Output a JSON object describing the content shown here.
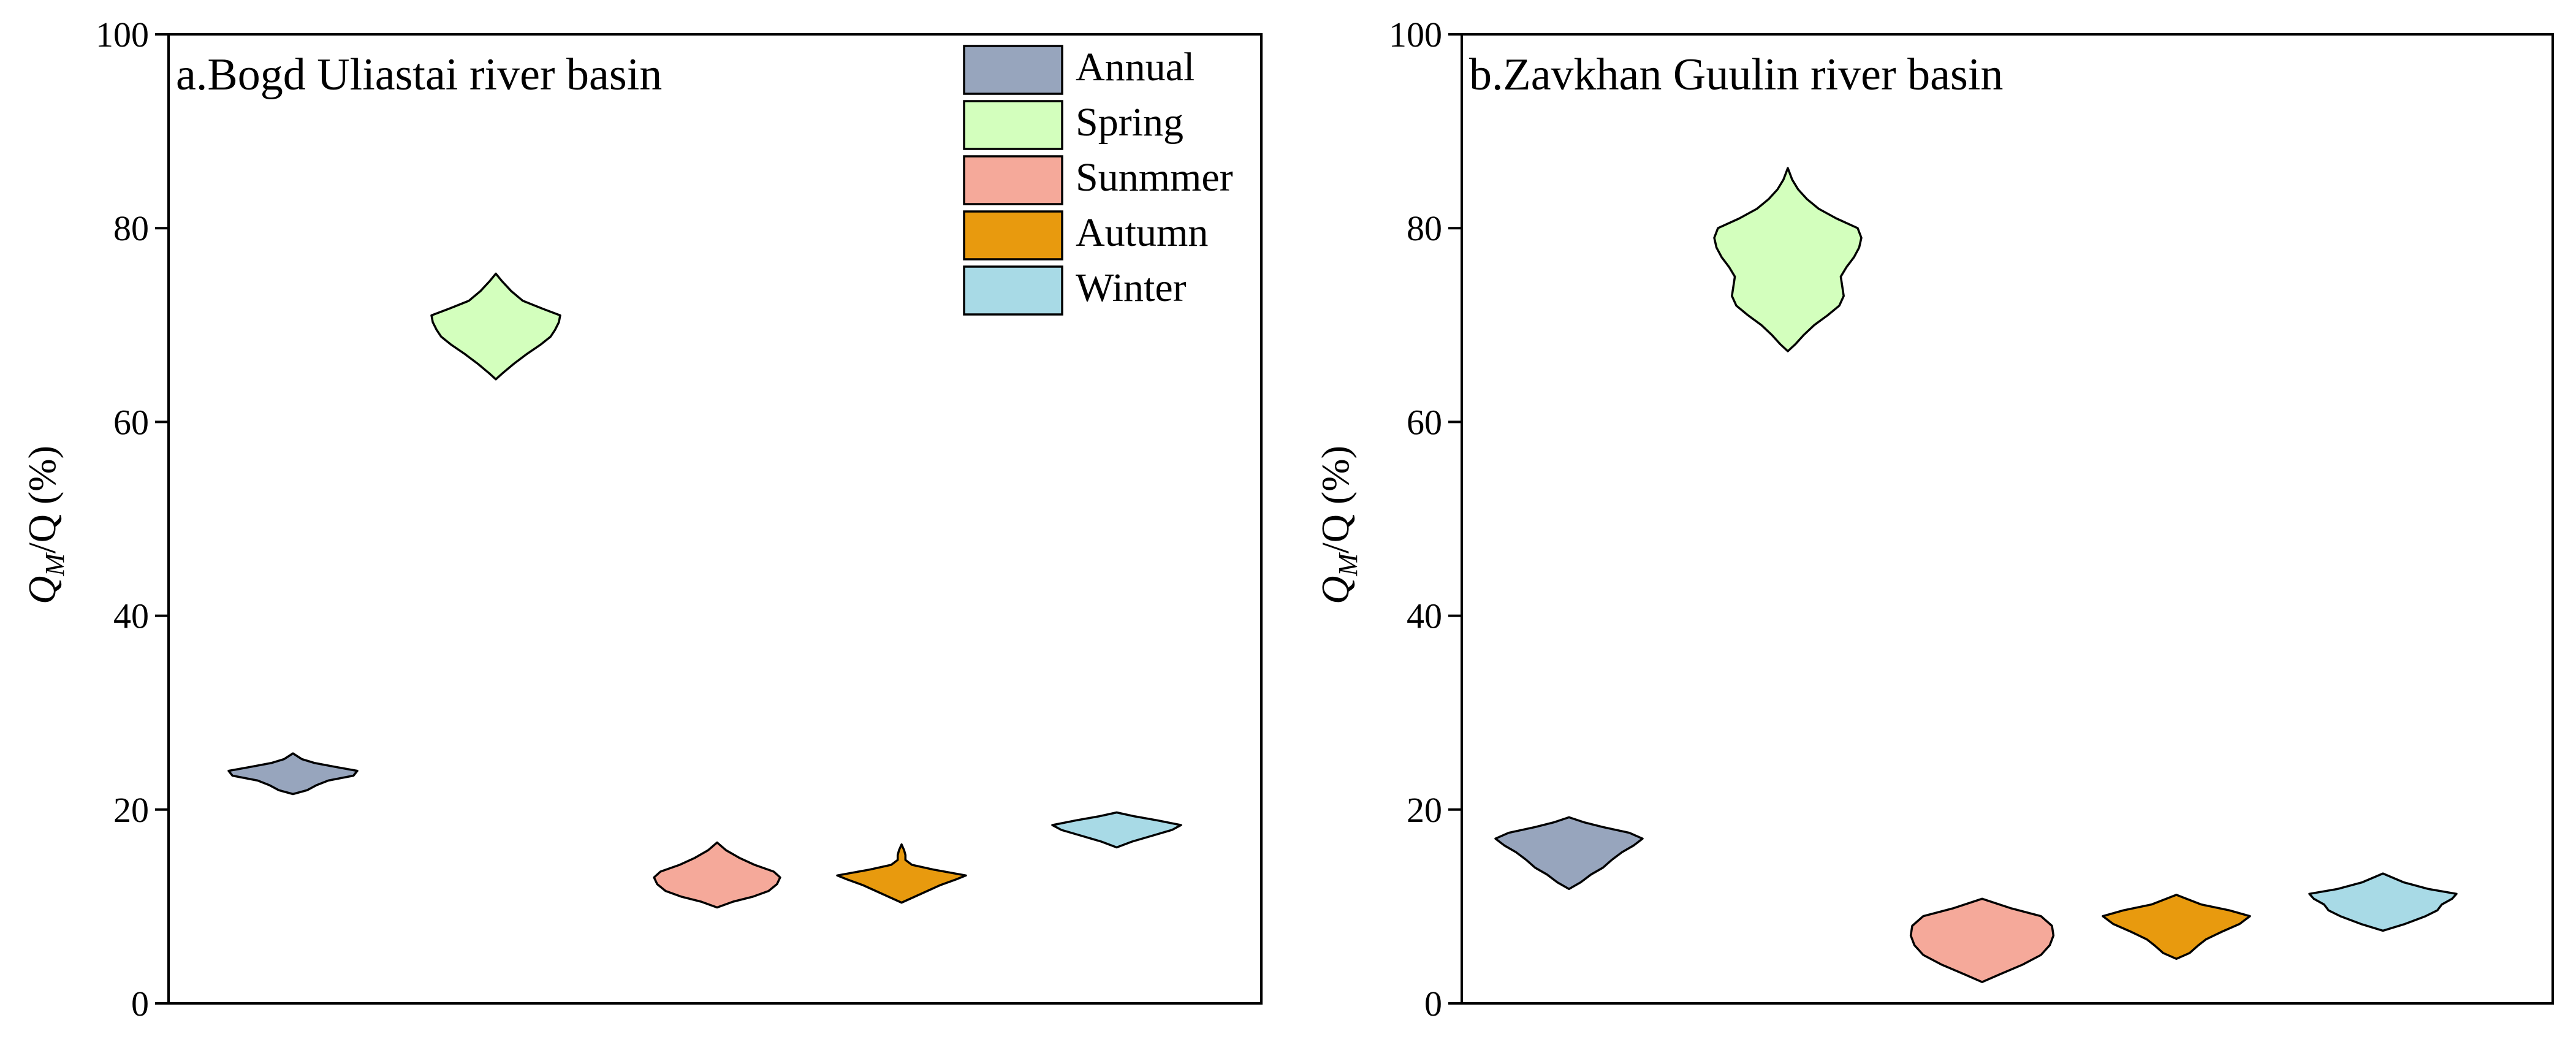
{
  "chart_data": [
    {
      "type": "violin",
      "title": "a.Bogd Uliastai river basin",
      "ylabel": {
        "q": "Q",
        "sub": "M",
        "rest": "/Q (%)"
      },
      "ylim": [
        0,
        100
      ],
      "yticks": [
        0,
        20,
        40,
        60,
        80,
        100
      ],
      "legend": {
        "position": "top-right",
        "entries": [
          "Annual",
          "Spring",
          "Sunmmer",
          "Autumn",
          "Winter"
        ]
      },
      "series": [
        {
          "name": "Annual",
          "color": "#97a5bd",
          "profile": [
            [
              21.6,
              0
            ],
            [
              22,
              0.22
            ],
            [
              22.5,
              0.36
            ],
            [
              23,
              0.55
            ],
            [
              23.5,
              0.94
            ],
            [
              24,
              1
            ],
            [
              24.4,
              0.66
            ],
            [
              24.8,
              0.34
            ],
            [
              25.2,
              0.14
            ],
            [
              25.8,
              0
            ]
          ]
        },
        {
          "name": "Spring",
          "color": "#d3ffbd",
          "profile": [
            [
              64.4,
              0
            ],
            [
              65,
              0.1
            ],
            [
              66,
              0.28
            ],
            [
              67,
              0.48
            ],
            [
              68,
              0.7
            ],
            [
              68.8,
              0.85
            ],
            [
              69.5,
              0.92
            ],
            [
              70.3,
              0.98
            ],
            [
              71,
              1
            ],
            [
              71.7,
              0.72
            ],
            [
              72.5,
              0.42
            ],
            [
              73.5,
              0.24
            ],
            [
              74.5,
              0.1
            ],
            [
              75.3,
              0
            ]
          ]
        },
        {
          "name": "Sunmmer",
          "color": "#f5a99a",
          "profile": [
            [
              9.9,
              0
            ],
            [
              10.5,
              0.25
            ],
            [
              11,
              0.55
            ],
            [
              11.6,
              0.8
            ],
            [
              12.3,
              0.93
            ],
            [
              13,
              0.98
            ],
            [
              13.6,
              0.88
            ],
            [
              14.3,
              0.58
            ],
            [
              15,
              0.35
            ],
            [
              15.8,
              0.14
            ],
            [
              16.6,
              0
            ]
          ]
        },
        {
          "name": "Autumn",
          "color": "#e89a0e",
          "profile": [
            [
              10.4,
              0
            ],
            [
              11,
              0.2
            ],
            [
              11.6,
              0.4
            ],
            [
              12.2,
              0.6
            ],
            [
              12.8,
              0.85
            ],
            [
              13.2,
              1
            ],
            [
              13.8,
              0.5
            ],
            [
              14.3,
              0.16
            ],
            [
              14.8,
              0.06
            ],
            [
              15.3,
              0.06
            ],
            [
              15.8,
              0.04
            ],
            [
              16.4,
              0
            ]
          ]
        },
        {
          "name": "Winter",
          "color": "#a8dae6",
          "profile": [
            [
              16.1,
              0
            ],
            [
              16.7,
              0.24
            ],
            [
              17.3,
              0.55
            ],
            [
              17.9,
              0.86
            ],
            [
              18.4,
              1
            ],
            [
              18.9,
              0.62
            ],
            [
              19.3,
              0.28
            ],
            [
              19.7,
              0
            ]
          ]
        }
      ]
    },
    {
      "type": "violin",
      "title": "b.Zavkhan Guulin river basin",
      "ylabel": {
        "q": "Q",
        "sub": "M",
        "rest": "/Q (%)"
      },
      "ylim": [
        0,
        100
      ],
      "yticks": [
        0,
        20,
        40,
        60,
        80,
        100
      ],
      "series": [
        {
          "name": "Annual",
          "color": "#97a5bd",
          "profile": [
            [
              11.8,
              0
            ],
            [
              12.5,
              0.16
            ],
            [
              13.3,
              0.3
            ],
            [
              14,
              0.46
            ],
            [
              14.8,
              0.58
            ],
            [
              15.6,
              0.72
            ],
            [
              16.3,
              0.88
            ],
            [
              17,
              1
            ],
            [
              17.6,
              0.82
            ],
            [
              18.2,
              0.46
            ],
            [
              18.7,
              0.2
            ],
            [
              19.2,
              0
            ]
          ]
        },
        {
          "name": "Spring",
          "color": "#d3ffbd",
          "profile": [
            [
              67.3,
              0
            ],
            [
              68,
              0.1
            ],
            [
              69,
              0.22
            ],
            [
              70,
              0.36
            ],
            [
              71,
              0.54
            ],
            [
              72,
              0.7
            ],
            [
              73,
              0.76
            ],
            [
              74,
              0.74
            ],
            [
              75,
              0.72
            ],
            [
              76,
              0.8
            ],
            [
              77,
              0.9
            ],
            [
              78,
              0.97
            ],
            [
              79,
              1
            ],
            [
              80,
              0.95
            ],
            [
              81,
              0.66
            ],
            [
              82,
              0.42
            ],
            [
              83,
              0.26
            ],
            [
              84,
              0.14
            ],
            [
              85,
              0.06
            ],
            [
              86.2,
              0
            ]
          ]
        },
        {
          "name": "Sunmmer",
          "color": "#f5a99a",
          "profile": [
            [
              2.2,
              0
            ],
            [
              3,
              0.24
            ],
            [
              4,
              0.55
            ],
            [
              5,
              0.8
            ],
            [
              6,
              0.92
            ],
            [
              7,
              0.97
            ],
            [
              8,
              0.95
            ],
            [
              9,
              0.8
            ],
            [
              9.8,
              0.4
            ],
            [
              10.8,
              0
            ]
          ]
        },
        {
          "name": "Autumn",
          "color": "#e89a0e",
          "profile": [
            [
              4.6,
              0
            ],
            [
              5.2,
              0.18
            ],
            [
              6,
              0.3
            ],
            [
              6.6,
              0.4
            ],
            [
              7.4,
              0.62
            ],
            [
              8.2,
              0.86
            ],
            [
              9,
              1
            ],
            [
              9.6,
              0.72
            ],
            [
              10.2,
              0.34
            ],
            [
              11.2,
              0
            ]
          ]
        },
        {
          "name": "Winter",
          "color": "#a8dae6",
          "profile": [
            [
              7.5,
              0
            ],
            [
              8.2,
              0.3
            ],
            [
              9,
              0.58
            ],
            [
              9.6,
              0.74
            ],
            [
              10.2,
              0.8
            ],
            [
              10.8,
              0.94
            ],
            [
              11.3,
              1
            ],
            [
              11.8,
              0.62
            ],
            [
              12.5,
              0.28
            ],
            [
              13.4,
              0
            ]
          ]
        }
      ]
    }
  ]
}
